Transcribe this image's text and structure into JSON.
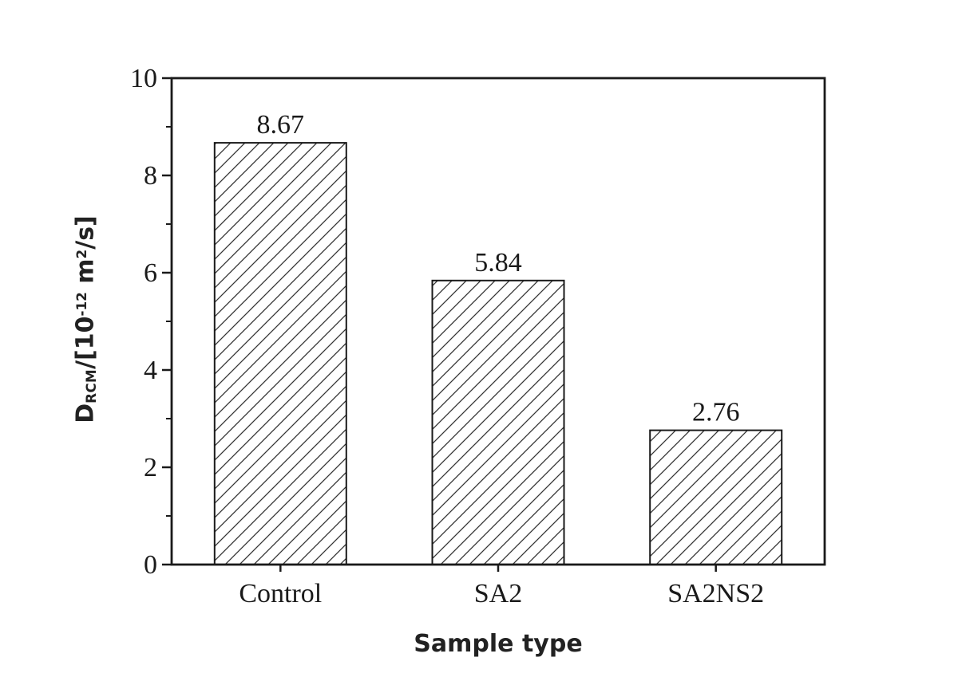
{
  "figure": {
    "background": "#ffffff",
    "ink_color": "#1a1a1a",
    "hatch_color": "#333333"
  },
  "chart_data": {
    "type": "bar",
    "title": "",
    "categories": [
      "Control",
      "SA2",
      "SA2NS2"
    ],
    "values": [
      8.67,
      5.84,
      2.76
    ],
    "bar_labels": [
      "8.67",
      "5.84",
      "2.76"
    ],
    "xlabel": "Sample type",
    "ylabel": "D_RCM/[10^-12 m^2/s]",
    "ylabel_parts": [
      {
        "text": "D"
      },
      {
        "text": "RCM",
        "script": "sub"
      },
      {
        "text": "/[10"
      },
      {
        "text": "-12",
        "script": "sup"
      },
      {
        "text": " m"
      },
      {
        "text": "2",
        "script": "sup"
      },
      {
        "text": "/s]"
      }
    ],
    "ylim": [
      0,
      10
    ],
    "yticks_major": [
      0,
      2,
      4,
      6,
      8,
      10
    ],
    "yticks_minor": [
      1,
      3,
      5,
      7,
      9
    ],
    "grid": false,
    "legend": null,
    "bar_fill_style": "diagonal-hatch",
    "bar_face_color": "#ffffff"
  }
}
